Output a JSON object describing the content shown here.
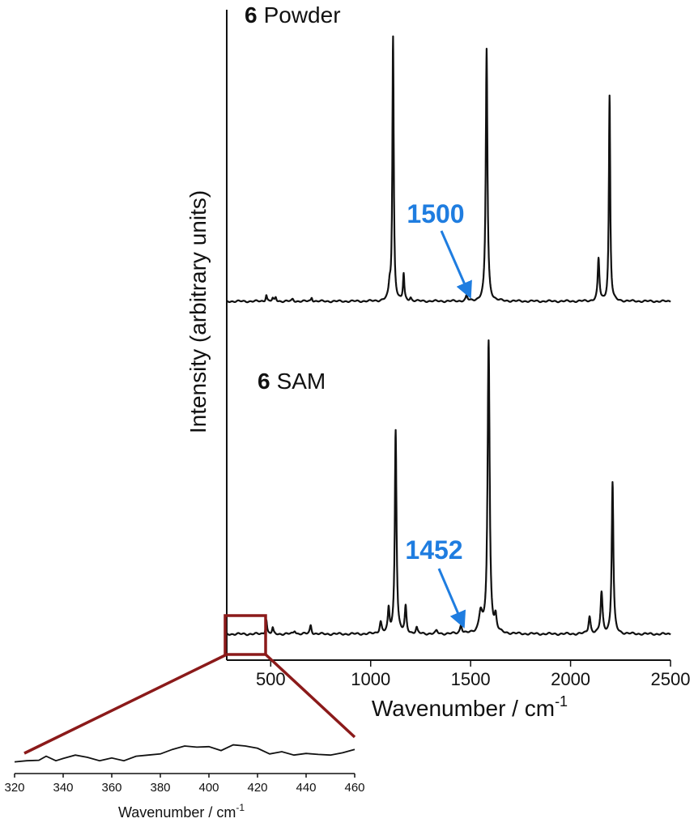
{
  "colors": {
    "annotation": "#1f7de0",
    "zoom": "#8b1a1a",
    "trace": "#111111"
  },
  "chart_data": [
    {
      "type": "line",
      "xlabel": "Wavenumber / cm",
      "xlabel_superscript": "-1",
      "ylabel": "Intensity (arbitrary units)",
      "xlim": [
        280,
        2500
      ],
      "x_ticks": [
        500,
        1000,
        1500,
        2000,
        2500
      ],
      "series": [
        {
          "name": "Powder",
          "label_number": "6",
          "label_text": "Powder",
          "peaks": [
            {
              "x": 478,
              "height": 0.025,
              "width": 4
            },
            {
              "x": 510,
              "height": 0.01,
              "width": 4
            },
            {
              "x": 525,
              "height": 0.015,
              "width": 4
            },
            {
              "x": 610,
              "height": 0.008,
              "width": 5
            },
            {
              "x": 705,
              "height": 0.015,
              "width": 4
            },
            {
              "x": 1095,
              "height": 0.05,
              "width": 6
            },
            {
              "x": 1112,
              "height": 1.0,
              "width": 4
            },
            {
              "x": 1165,
              "height": 0.1,
              "width": 4
            },
            {
              "x": 1200,
              "height": 0.012,
              "width": 5
            },
            {
              "x": 1480,
              "height": 0.02,
              "width": 5
            },
            {
              "x": 1580,
              "height": 0.96,
              "width": 5
            },
            {
              "x": 2140,
              "height": 0.16,
              "width": 5
            },
            {
              "x": 2195,
              "height": 0.78,
              "width": 4
            }
          ],
          "annotation": {
            "text": "1500",
            "x": 1500
          }
        },
        {
          "name": "SAM",
          "label_number": "6",
          "label_text": "SAM",
          "baseline": 0.02,
          "peaks": [
            {
              "x": 478,
              "height": 0.05,
              "width": 4
            },
            {
              "x": 510,
              "height": 0.02,
              "width": 4
            },
            {
              "x": 620,
              "height": 0.012,
              "width": 6
            },
            {
              "x": 700,
              "height": 0.03,
              "width": 5
            },
            {
              "x": 1050,
              "height": 0.04,
              "width": 6
            },
            {
              "x": 1090,
              "height": 0.08,
              "width": 5
            },
            {
              "x": 1125,
              "height": 0.7,
              "width": 5
            },
            {
              "x": 1175,
              "height": 0.09,
              "width": 5
            },
            {
              "x": 1230,
              "height": 0.02,
              "width": 5
            },
            {
              "x": 1330,
              "height": 0.01,
              "width": 6
            },
            {
              "x": 1452,
              "height": 0.03,
              "width": 6
            },
            {
              "x": 1550,
              "height": 0.07,
              "width": 10
            },
            {
              "x": 1590,
              "height": 1.0,
              "width": 6
            },
            {
              "x": 1625,
              "height": 0.05,
              "width": 6
            },
            {
              "x": 2095,
              "height": 0.06,
              "width": 6
            },
            {
              "x": 2155,
              "height": 0.14,
              "width": 6
            },
            {
              "x": 2210,
              "height": 0.52,
              "width": 5
            }
          ],
          "annotation": {
            "text": "1452",
            "x": 1452
          }
        }
      ]
    },
    {
      "type": "line",
      "xlabel": "Wavenumber / cm",
      "xlabel_superscript": "-1",
      "xlim": [
        320,
        460
      ],
      "x_ticks": [
        320,
        340,
        360,
        380,
        400,
        420,
        440,
        460
      ],
      "series": [
        {
          "name": "SAM zoom",
          "x": [
            320,
            325,
            330,
            333,
            337,
            340,
            345,
            350,
            355,
            360,
            365,
            370,
            375,
            380,
            385,
            390,
            395,
            400,
            405,
            410,
            415,
            420,
            425,
            430,
            435,
            440,
            445,
            450,
            455,
            460
          ],
          "y": [
            0.05,
            0.1,
            0.12,
            0.3,
            0.1,
            0.2,
            0.35,
            0.25,
            0.1,
            0.22,
            0.1,
            0.3,
            0.35,
            0.4,
            0.6,
            0.75,
            0.7,
            0.72,
            0.55,
            0.8,
            0.75,
            0.65,
            0.4,
            0.5,
            0.35,
            0.42,
            0.38,
            0.35,
            0.45,
            0.6
          ]
        }
      ]
    }
  ]
}
